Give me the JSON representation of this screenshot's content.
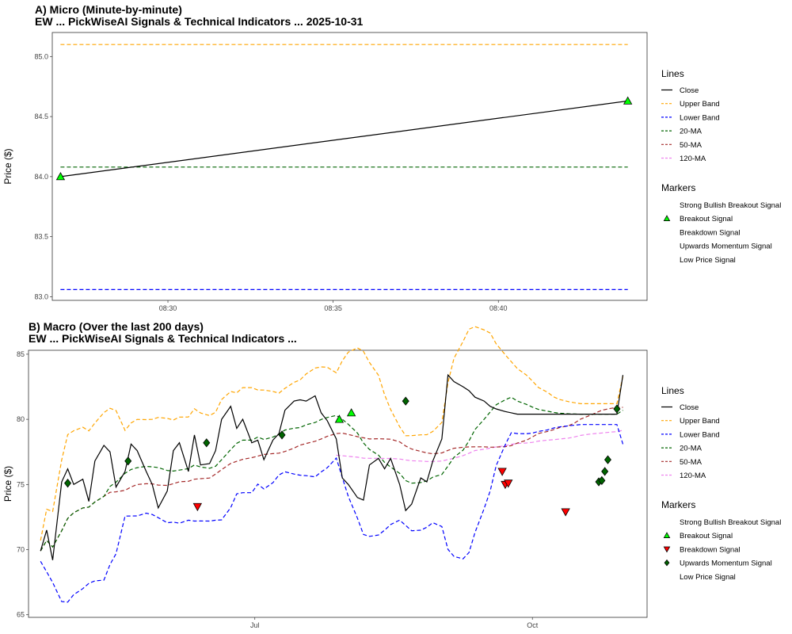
{
  "chart_data": [
    {
      "type": "line",
      "title": "A) Micro (Minute-by-minute)",
      "subtitle": "EW ... PickWiseAI Signals & Technical Indicators ... 2025-10-31",
      "ylabel": "Price ($)",
      "xlabel": "",
      "xlim": [
        "08:26:30",
        "08:44:30"
      ],
      "ylim": [
        82.97,
        85.2
      ],
      "x_ticks": [
        "08:30",
        "08:35",
        "08:40"
      ],
      "y_ticks": [
        "83.0",
        "83.5",
        "84.0",
        "84.5",
        "85.0"
      ],
      "series": [
        {
          "name": "Close",
          "color": "#000000",
          "dash": "solid",
          "x": [
            "08:26:45",
            "08:43:55"
          ],
          "values": [
            84.0,
            84.63
          ]
        },
        {
          "name": "Upper Band",
          "color": "#FFA500",
          "dash": "dashed",
          "x": [
            "08:26:45",
            "08:43:55"
          ],
          "values": [
            85.1,
            85.1
          ]
        },
        {
          "name": "Lower Band",
          "color": "#0000FF",
          "dash": "dashed",
          "x": [
            "08:26:45",
            "08:43:55"
          ],
          "values": [
            83.06,
            83.06
          ]
        },
        {
          "name": "20-MA",
          "color": "#006400",
          "dash": "dashed",
          "x": [
            "08:26:45",
            "08:43:55"
          ],
          "values": [
            84.08,
            84.08
          ]
        },
        {
          "name": "50-MA",
          "color": "#A52A2A",
          "dash": "dashed",
          "x": [],
          "values": []
        },
        {
          "name": "120-MA",
          "color": "#EE82EE",
          "dash": "dashed",
          "x": [],
          "values": []
        }
      ],
      "markers": [
        {
          "name": "Breakout Signal",
          "shape": "triangle-up",
          "fill": "#00FF00",
          "x": [
            "08:26:45",
            "08:43:55"
          ],
          "values": [
            84.0,
            84.63
          ]
        }
      ],
      "legend": {
        "position": "right",
        "lines_title": "Lines",
        "lines": [
          {
            "label": "Close",
            "color": "#000000",
            "dash": "solid"
          },
          {
            "label": "Upper Band",
            "color": "#FFA500",
            "dash": "dashed"
          },
          {
            "label": "Lower Band",
            "color": "#0000FF",
            "dash": "dashed"
          },
          {
            "label": "20-MA",
            "color": "#006400",
            "dash": "dashed"
          },
          {
            "label": "50-MA",
            "color": "#A52A2A",
            "dash": "dashed"
          },
          {
            "label": "120-MA",
            "color": "#EE82EE",
            "dash": "dashed"
          }
        ],
        "markers_title": "Markers",
        "markers": [
          {
            "label": "Strong Bullish Breakout Signal",
            "shape": "none"
          },
          {
            "label": "Breakout Signal",
            "shape": "triangle-up",
            "fill": "#00FF00"
          },
          {
            "label": "Breakdown Signal",
            "shape": "none"
          },
          {
            "label": "Upwards Momentum Signal",
            "shape": "none"
          },
          {
            "label": "Low Price Signal",
            "shape": "none"
          }
        ]
      }
    },
    {
      "type": "line",
      "title": "B) Macro (Over the last 200 days)",
      "subtitle": "EW ... PickWiseAI Signals & Technical Indicators ...",
      "ylabel": "Price ($)",
      "xlabel": "",
      "xlim": [
        "2025-04-17",
        "2025-11-08"
      ],
      "ylim": [
        64.8,
        85.3
      ],
      "x_ticks": [
        {
          "label": "Jul",
          "date": "2025-07-01"
        },
        {
          "label": "Oct",
          "date": "2025-10-01"
        }
      ],
      "y_ticks": [
        "65",
        "70",
        "75",
        "80",
        "85"
      ],
      "series": [
        {
          "name": "Close",
          "color": "#000000",
          "dash": "solid",
          "x": [
            "2025-04-21",
            "2025-04-23",
            "2025-04-25",
            "2025-04-28",
            "2025-04-30",
            "2025-05-02",
            "2025-05-05",
            "2025-05-07",
            "2025-05-09",
            "2025-05-12",
            "2025-05-14",
            "2025-05-16",
            "2025-05-19",
            "2025-05-21",
            "2025-05-23",
            "2025-05-26",
            "2025-05-28",
            "2025-05-30",
            "2025-06-02",
            "2025-06-04",
            "2025-06-06",
            "2025-06-09",
            "2025-06-11",
            "2025-06-13",
            "2025-06-16",
            "2025-06-18",
            "2025-06-20",
            "2025-06-23",
            "2025-06-25",
            "2025-06-27",
            "2025-06-30",
            "2025-07-02",
            "2025-07-04",
            "2025-07-07",
            "2025-07-09",
            "2025-07-11",
            "2025-07-14",
            "2025-07-16",
            "2025-07-18",
            "2025-07-21",
            "2025-07-23",
            "2025-07-25",
            "2025-07-28",
            "2025-07-30",
            "2025-08-01",
            "2025-08-04",
            "2025-08-06",
            "2025-08-08",
            "2025-08-11",
            "2025-08-13",
            "2025-08-15",
            "2025-08-18",
            "2025-08-20",
            "2025-08-22",
            "2025-08-25",
            "2025-08-27",
            "2025-08-29",
            "2025-09-01",
            "2025-09-03",
            "2025-09-05",
            "2025-09-08",
            "2025-09-10",
            "2025-09-12",
            "2025-09-15",
            "2025-09-17",
            "2025-09-19",
            "2025-09-22",
            "2025-09-24",
            "2025-09-26",
            "2025-09-29",
            "2025-10-01",
            "2025-10-03",
            "2025-10-06",
            "2025-10-08",
            "2025-10-10",
            "2025-10-13",
            "2025-10-15",
            "2025-10-17",
            "2025-10-20",
            "2025-10-22",
            "2025-10-24",
            "2025-10-27",
            "2025-10-29",
            "2025-10-31"
          ],
          "values": [
            69.9,
            71.5,
            69.2,
            75.2,
            76.2,
            75.0,
            75.4,
            73.7,
            76.8,
            78.0,
            77.5,
            74.8,
            76.0,
            78.1,
            77.6,
            76.0,
            75.0,
            73.2,
            74.5,
            77.6,
            78.2,
            76.0,
            78.8,
            76.5,
            76.6,
            77.6,
            80.0,
            81.0,
            79.3,
            80.0,
            78.2,
            78.4,
            76.9,
            78.4,
            78.9,
            80.7,
            81.4,
            81.5,
            81.4,
            81.8,
            80.5,
            79.9,
            78.5,
            75.5,
            75.0,
            74.0,
            73.8,
            76.5,
            77.0,
            76.2,
            77.0,
            75.0,
            73.0,
            73.5,
            75.5,
            75.2,
            76.8,
            78.5,
            83.4,
            82.9,
            82.5,
            82.2,
            81.7,
            81.4,
            81.0,
            80.8,
            80.6,
            80.5,
            80.4,
            80.4,
            80.4,
            80.4,
            80.4,
            80.4,
            80.4,
            80.4,
            80.4,
            80.4,
            80.4,
            80.4,
            80.4,
            80.4,
            80.4,
            83.4
          ]
        },
        {
          "name": "Upper Band",
          "color": "#FFA500",
          "dash": "dashed"
        },
        {
          "name": "Lower Band",
          "color": "#0000FF",
          "dash": "dashed"
        },
        {
          "name": "20-MA",
          "color": "#006400",
          "dash": "dashed"
        },
        {
          "name": "50-MA",
          "color": "#A52A2A",
          "dash": "dashed"
        },
        {
          "name": "120-MA",
          "color": "#EE82EE",
          "dash": "dashed"
        }
      ],
      "markers": [
        {
          "name": "Breakout Signal",
          "shape": "triangle-up",
          "fill": "#00FF00",
          "x": [
            "2025-07-29",
            "2025-08-02"
          ],
          "values": [
            80.0,
            80.5
          ]
        },
        {
          "name": "Breakdown Signal",
          "shape": "triangle-down",
          "fill": "#FF0000",
          "x": [
            "2025-06-12",
            "2025-09-21",
            "2025-09-22",
            "2025-09-23",
            "2025-10-12"
          ],
          "values": [
            73.3,
            76.0,
            75.0,
            75.1,
            72.9
          ]
        },
        {
          "name": "Upwards Momentum Signal",
          "shape": "diamond",
          "fill": "#006400",
          "x": [
            "2025-04-30",
            "2025-05-20",
            "2025-06-15",
            "2025-07-10",
            "2025-08-20",
            "2025-10-23",
            "2025-10-24",
            "2025-10-25",
            "2025-10-26",
            "2025-10-29"
          ],
          "values": [
            75.1,
            76.8,
            78.2,
            78.8,
            81.4,
            75.2,
            75.3,
            76.0,
            76.9,
            80.8
          ]
        }
      ],
      "legend": {
        "position": "right",
        "lines_title": "Lines",
        "lines": [
          {
            "label": "Close",
            "color": "#000000",
            "dash": "solid"
          },
          {
            "label": "Upper Band",
            "color": "#FFA500",
            "dash": "dashed"
          },
          {
            "label": "Lower Band",
            "color": "#0000FF",
            "dash": "dashed"
          },
          {
            "label": "20-MA",
            "color": "#006400",
            "dash": "dashed"
          },
          {
            "label": "50-MA",
            "color": "#A52A2A",
            "dash": "dashed"
          },
          {
            "label": "120-MA",
            "color": "#EE82EE",
            "dash": "dashed"
          }
        ],
        "markers_title": "Markers",
        "markers": [
          {
            "label": "Strong Bullish Breakout Signal",
            "shape": "none"
          },
          {
            "label": "Breakout Signal",
            "shape": "triangle-up",
            "fill": "#00FF00"
          },
          {
            "label": "Breakdown Signal",
            "shape": "triangle-down",
            "fill": "#FF0000"
          },
          {
            "label": "Upwards Momentum Signal",
            "shape": "diamond",
            "fill": "#006400"
          },
          {
            "label": "Low Price Signal",
            "shape": "none"
          }
        ]
      }
    }
  ]
}
